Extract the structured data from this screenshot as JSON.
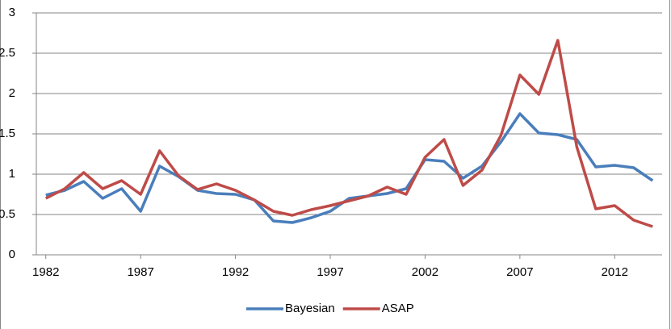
{
  "chart_data": {
    "type": "line",
    "categories": [
      "1982",
      null,
      null,
      null,
      null,
      "1987",
      null,
      null,
      null,
      null,
      "1992",
      null,
      null,
      null,
      null,
      "1997",
      null,
      null,
      null,
      null,
      "2002",
      null,
      null,
      null,
      null,
      "2007",
      null,
      null,
      null,
      null,
      "2012",
      null,
      null
    ],
    "series": [
      {
        "name": "Bayesian",
        "color": "#4a7ebb",
        "values": [
          0.74,
          0.8,
          0.91,
          0.7,
          0.82,
          0.54,
          1.1,
          0.97,
          0.8,
          0.76,
          0.75,
          0.68,
          0.42,
          0.4,
          0.46,
          0.54,
          0.7,
          0.73,
          0.76,
          0.82,
          1.18,
          1.16,
          0.95,
          1.1,
          1.4,
          1.75,
          1.51,
          1.49,
          1.43,
          1.09,
          1.11,
          1.08,
          0.92
        ]
      },
      {
        "name": "ASAP",
        "color": "#be4b48",
        "values": [
          0.7,
          0.82,
          1.02,
          0.82,
          0.92,
          0.75,
          1.29,
          0.98,
          0.81,
          0.88,
          0.8,
          0.68,
          0.54,
          0.49,
          0.56,
          0.61,
          0.67,
          0.73,
          0.84,
          0.75,
          1.21,
          1.43,
          0.86,
          1.05,
          1.48,
          2.23,
          1.99,
          2.66,
          1.34,
          0.57,
          0.61,
          0.43,
          0.35
        ]
      }
    ],
    "ylim": [
      0,
      3
    ],
    "yticks": [
      0,
      0.5,
      1,
      1.5,
      2,
      2.5,
      3
    ],
    "grid": true,
    "legend": "bottom"
  }
}
